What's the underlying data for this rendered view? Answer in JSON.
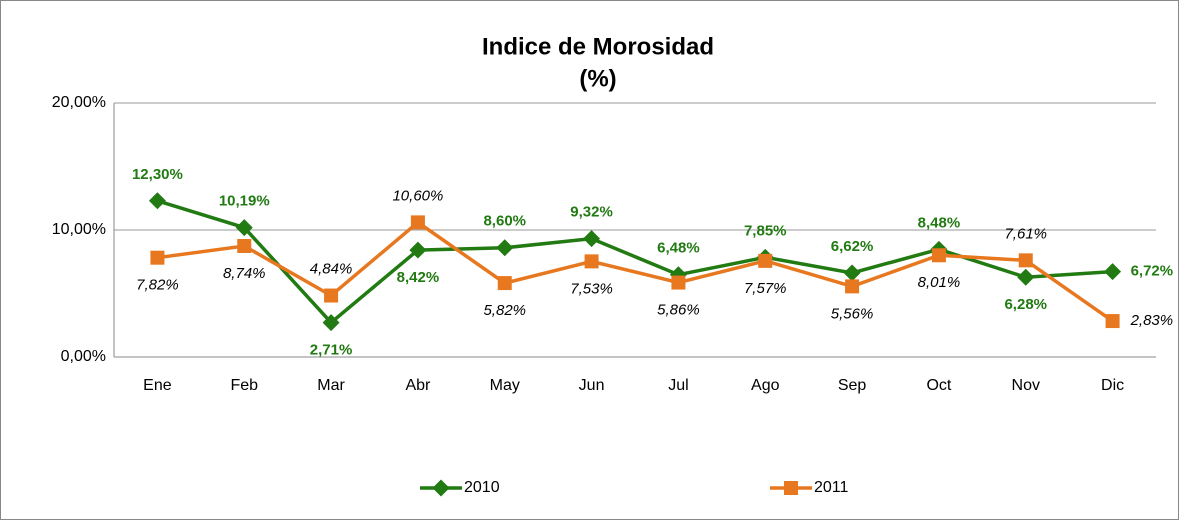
{
  "chart_data": {
    "type": "line",
    "title": "Indice de Morosidad",
    "subtitle": "(%)",
    "categories": [
      "Ene",
      "Feb",
      "Mar",
      "Abr",
      "May",
      "Jun",
      "Jul",
      "Ago",
      "Sep",
      "Oct",
      "Nov",
      "Dic"
    ],
    "series": [
      {
        "name": "2010",
        "color": "#217a12",
        "values": [
          12.3,
          10.19,
          2.71,
          8.42,
          8.6,
          9.32,
          6.48,
          7.85,
          6.62,
          8.48,
          6.28,
          6.72
        ],
        "value_labels": [
          "12,30%",
          "10,19%",
          "2,71%",
          "8,42%",
          "8,60%",
          "9,32%",
          "6,48%",
          "7,85%",
          "6,62%",
          "8,48%",
          "6,28%",
          "6,72%"
        ]
      },
      {
        "name": "2011",
        "color": "#e8781f",
        "values": [
          7.82,
          8.74,
          4.84,
          10.6,
          5.82,
          7.53,
          5.86,
          7.57,
          5.56,
          8.01,
          7.61,
          2.83
        ],
        "value_labels": [
          "7,82%",
          "8,74%",
          "4,84%",
          "10,60%",
          "5,82%",
          "7,53%",
          "5,86%",
          "7,57%",
          "5,56%",
          "8,01%",
          "7,61%",
          "2,83%"
        ]
      }
    ],
    "ylim": [
      0,
      20
    ],
    "yticks": [
      {
        "value": 0,
        "label": "0,00%"
      },
      {
        "value": 10,
        "label": "10,00%"
      },
      {
        "value": 20,
        "label": "20,00%"
      }
    ],
    "grid": true,
    "legend": "bottom"
  }
}
